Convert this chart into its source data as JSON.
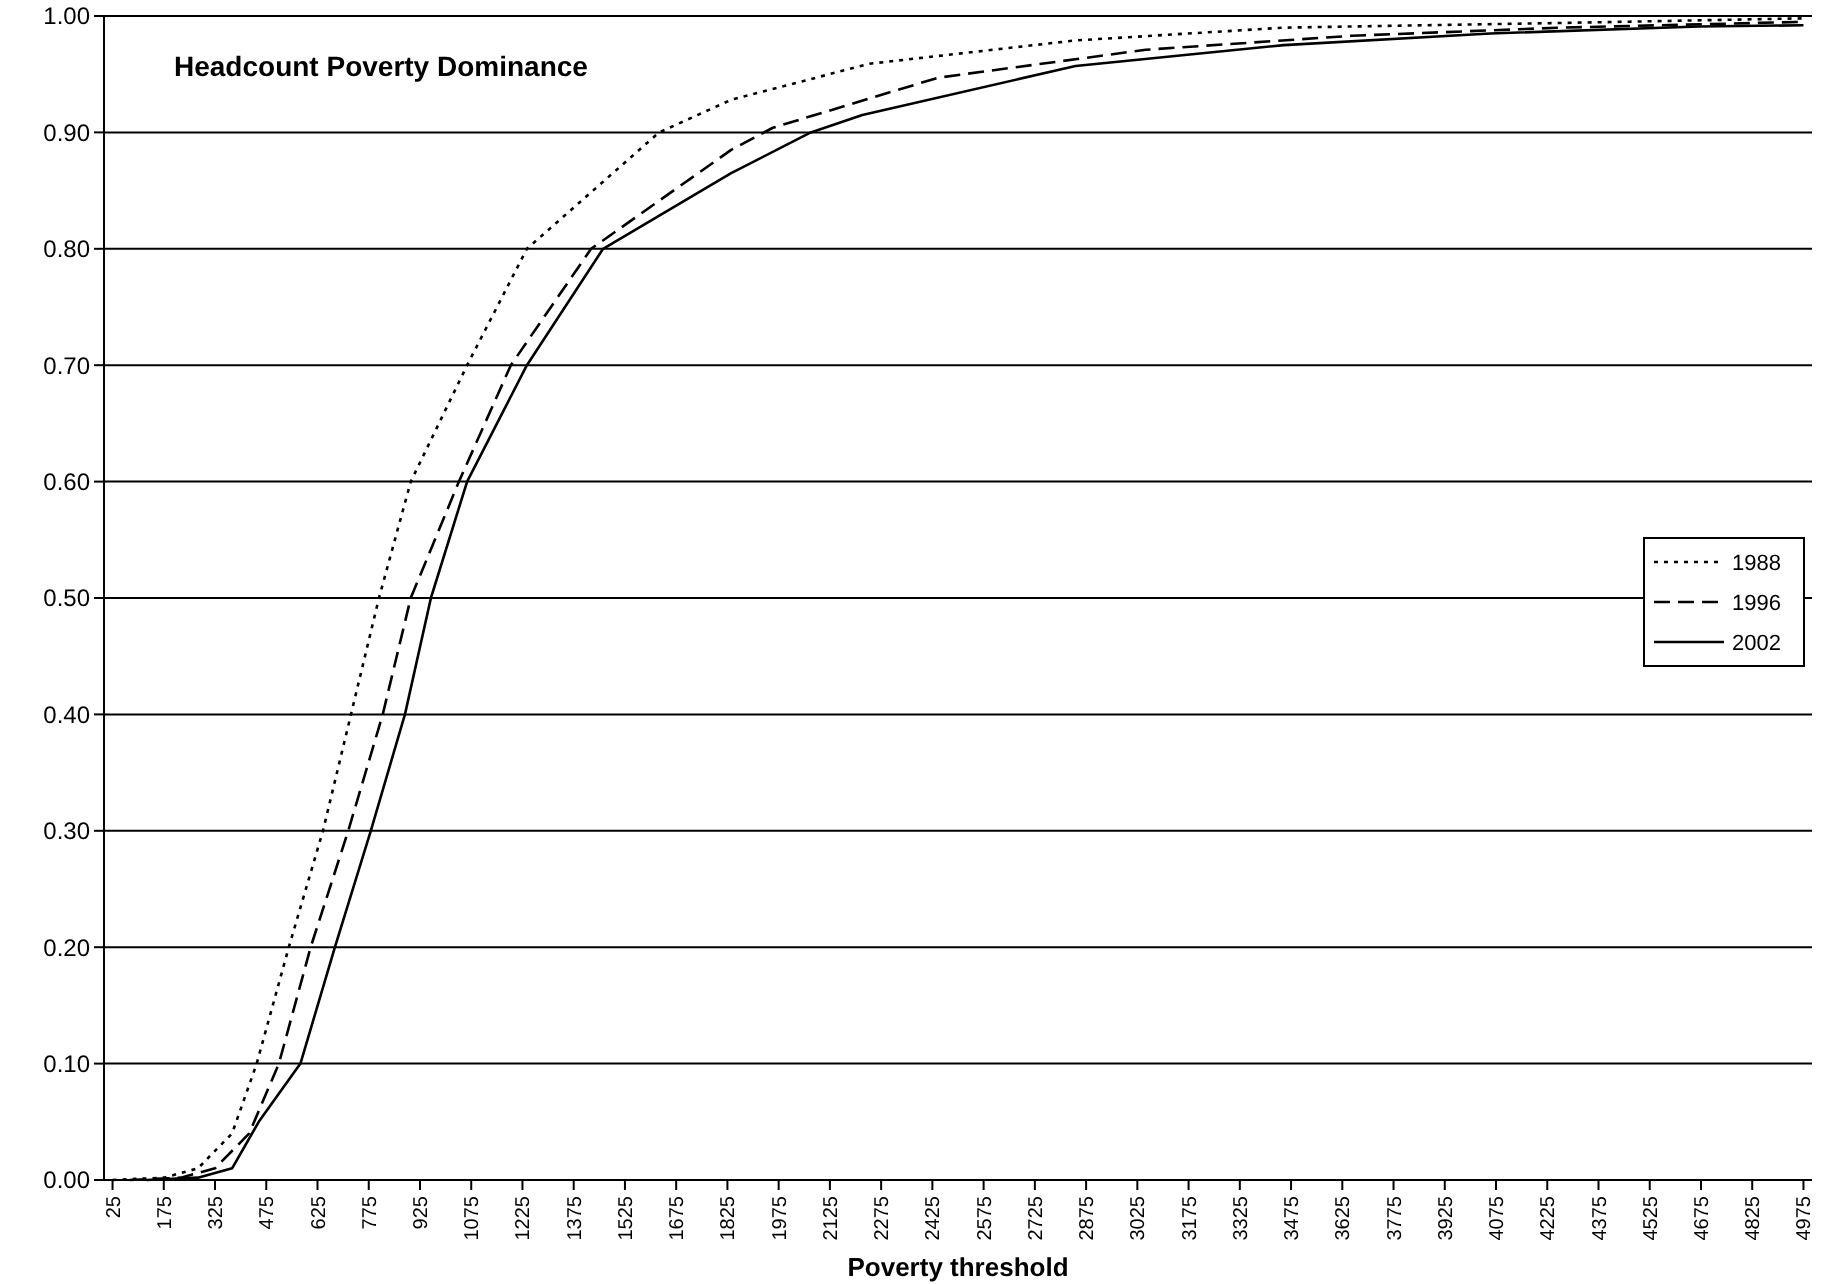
{
  "chart_data": {
    "type": "line",
    "title": "Headcount Poverty Dominance",
    "xlabel": "Poverty threshold",
    "xlim": [
      0,
      5000
    ],
    "xticks": [
      25,
      175,
      325,
      475,
      625,
      775,
      925,
      1075,
      1225,
      1375,
      1525,
      1675,
      1825,
      1975,
      2125,
      2275,
      2425,
      2575,
      2725,
      2875,
      3025,
      3175,
      3325,
      3475,
      3625,
      3775,
      3925,
      4075,
      4225,
      4375,
      4525,
      4675,
      4825,
      4975
    ],
    "ylim": [
      0,
      1
    ],
    "yticks": [
      {
        "value": 0,
        "label": "0.00"
      },
      {
        "value": 0.1,
        "label": "0.10"
      },
      {
        "value": 0.2,
        "label": "0.20"
      },
      {
        "value": 0.3,
        "label": "0.30"
      },
      {
        "value": 0.4,
        "label": "0.40"
      },
      {
        "value": 0.5,
        "label": "0.50"
      },
      {
        "value": 0.6,
        "label": "0.60"
      },
      {
        "value": 0.7,
        "label": "0.70"
      },
      {
        "value": 0.8,
        "label": "0.80"
      },
      {
        "value": 0.9,
        "label": "0.90"
      },
      {
        "value": 1,
        "label": "1.00"
      }
    ],
    "grid": "y",
    "legend": "right",
    "marker": "none",
    "series": [
      {
        "name": "1988",
        "color": "#000000",
        "line_style": "dotted",
        "x": [
          25,
          175,
          275,
          375,
          447,
          541,
          641,
          723,
          805,
          898,
          1063,
          1238,
          1625,
          1836,
          2241,
          2844,
          3454,
          4263,
          4975
        ],
        "values": [
          0,
          0.002,
          0.01,
          0.04,
          0.1,
          0.2,
          0.3,
          0.4,
          0.5,
          0.6,
          0.7,
          0.8,
          0.9,
          0.928,
          0.959,
          0.979,
          0.99,
          0.994,
          0.998
        ]
      },
      {
        "name": "1996",
        "color": "#000000",
        "line_style": "dashed",
        "x": [
          75,
          225,
          325,
          425,
          512,
          605,
          715,
          816,
          898,
          1039,
          1191,
          1426,
          1836,
          1958,
          2442,
          3050,
          3653,
          4263,
          4975
        ],
        "values": [
          0,
          0.002,
          0.01,
          0.04,
          0.1,
          0.2,
          0.3,
          0.4,
          0.5,
          0.6,
          0.7,
          0.8,
          0.885,
          0.904,
          0.947,
          0.971,
          0.983,
          0.99,
          0.995
        ]
      },
      {
        "name": "2002",
        "color": "#000000",
        "line_style": "solid",
        "x": [
          125,
          275,
          375,
          453,
          575,
          676,
          781,
          881,
          957,
          1063,
          1238,
          1461,
          1836,
          2069,
          2220,
          2844,
          3454,
          4058,
          4668,
          4975
        ],
        "values": [
          0,
          0.002,
          0.01,
          0.05,
          0.1,
          0.2,
          0.3,
          0.4,
          0.5,
          0.6,
          0.7,
          0.8,
          0.865,
          0.9,
          0.915,
          0.957,
          0.975,
          0.985,
          0.991,
          0.992
        ]
      }
    ]
  }
}
